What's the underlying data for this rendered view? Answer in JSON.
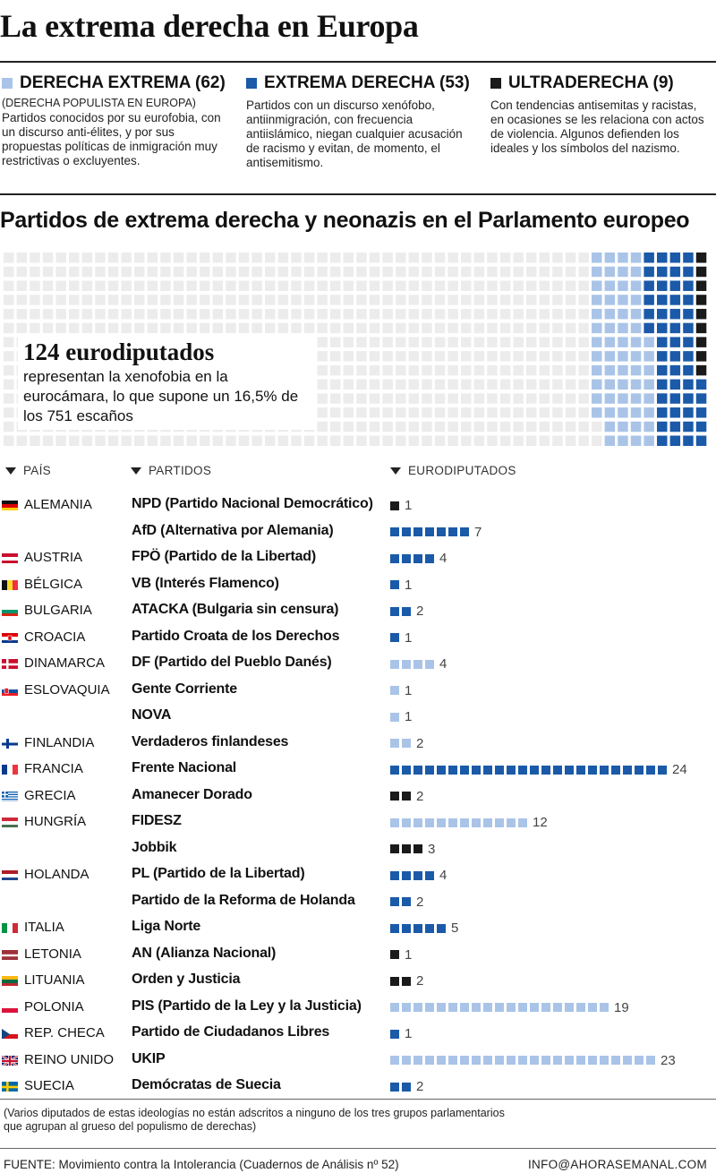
{
  "title": "La extrema derecha en Europa",
  "colors": {
    "derecha_extrema": "#aac4e8",
    "extrema_derecha": "#1a5aa8",
    "ultraderecha": "#1a1a1a",
    "empty": "#ececec"
  },
  "categories": [
    {
      "key": "derecha_extrema",
      "title": "DERECHA EXTREMA (62)",
      "subtitle": "(DERECHA POPULISTA EN EUROPA)",
      "description": "Partidos conocidos por su eurofobia, con un discurso anti-élites, y por sus propuestas políticas de inmigración muy restrictivas o excluyentes."
    },
    {
      "key": "extrema_derecha",
      "title": "EXTREMA DERECHA (53)",
      "subtitle": "",
      "description": "Partidos con un discurso xenófobo, antiinmigración, con frecuencia antiislámico, niegan cualquier acusación de racismo y evitan, de momento, el antisemitismo."
    },
    {
      "key": "ultraderecha",
      "title": "ULTRADERECHA (9)",
      "subtitle": "",
      "description": "Con tendencias antisemitas y racistas, en ocasiones se les relaciona con actos de violencia. Algunos defienden los ideales y los símbolos del nazismo."
    }
  ],
  "section_title": "Partidos de extrema derecha y neonazis en el Parlamento europeo",
  "callout": {
    "number": "124 eurodiputados",
    "text": "representan la xenofobia en la eurocámara, lo que supone un 16,5% de los  751 escaños"
  },
  "columns": {
    "country": "PAÍS",
    "party": "PARTIDOS",
    "mep": "EURODIPUTADOS"
  },
  "chart_data": [
    {
      "type": "waffle",
      "total_seats": 751,
      "series": [
        {
          "name": "DERECHA EXTREMA",
          "values": [
            62
          ]
        },
        {
          "name": "EXTREMA DERECHA",
          "values": [
            53
          ]
        },
        {
          "name": "ULTRADERECHA",
          "values": [
            9
          ]
        }
      ]
    },
    {
      "type": "bar",
      "categories": [
        "NPD (Partido Nacional Democrático)",
        "AfD (Alternativa por Alemania)",
        "FPÖ (Partido de la Libertad)",
        "VB (Interés Flamenco)",
        "ATACKA (Bulgaria sin censura)",
        "Partido Croata de los Derechos",
        "DF (Partido del Pueblo Danés)",
        "Gente Corriente",
        "NOVA",
        "Verdaderos finlandeses",
        "Frente Nacional",
        "Amanecer Dorado",
        "FIDESZ",
        "Jobbik",
        "PL (Partido de la Libertad)",
        "Partido de la Reforma de Holanda",
        "Liga Norte",
        "AN (Alianza Nacional)",
        "Orden y Justicia",
        "PIS (Partido de la Ley y la Justicia)",
        "Partido de Ciudadanos Libres",
        "UKIP",
        "Demócratas de Suecia"
      ],
      "values": [
        1,
        7,
        4,
        1,
        2,
        1,
        4,
        1,
        1,
        2,
        24,
        2,
        12,
        3,
        4,
        2,
        5,
        1,
        2,
        19,
        1,
        23,
        2
      ]
    }
  ],
  "rows": [
    {
      "country": "ALEMANIA",
      "flag": "germany",
      "party": "NPD (Partido Nacional Democrático)",
      "count": 1,
      "cat": "ultraderecha"
    },
    {
      "country": "",
      "flag": "",
      "party": "AfD (Alternativa por Alemania)",
      "count": 7,
      "cat": "extrema_derecha"
    },
    {
      "country": "AUSTRIA",
      "flag": "austria",
      "party": "FPÖ (Partido de la Libertad)",
      "count": 4,
      "cat": "extrema_derecha"
    },
    {
      "country": "BÉLGICA",
      "flag": "belgium",
      "party": "VB (Interés Flamenco)",
      "count": 1,
      "cat": "extrema_derecha"
    },
    {
      "country": "BULGARIA",
      "flag": "bulgaria",
      "party": "ATACKA (Bulgaria sin censura)",
      "count": 2,
      "cat": "extrema_derecha"
    },
    {
      "country": "CROACIA",
      "flag": "croatia",
      "party": "Partido Croata de los Derechos",
      "count": 1,
      "cat": "extrema_derecha"
    },
    {
      "country": "DINAMARCA",
      "flag": "denmark",
      "party": "DF (Partido del Pueblo Danés)",
      "count": 4,
      "cat": "derecha_extrema"
    },
    {
      "country": "ESLOVAQUIA",
      "flag": "slovakia",
      "party": "Gente Corriente",
      "count": 1,
      "cat": "derecha_extrema"
    },
    {
      "country": "",
      "flag": "",
      "party": "NOVA",
      "count": 1,
      "cat": "derecha_extrema"
    },
    {
      "country": "FINLANDIA",
      "flag": "finland",
      "party": "Verdaderos finlandeses",
      "count": 2,
      "cat": "derecha_extrema"
    },
    {
      "country": "FRANCIA",
      "flag": "france",
      "party": "Frente Nacional",
      "count": 24,
      "cat": "extrema_derecha"
    },
    {
      "country": "GRECIA",
      "flag": "greece",
      "party": "Amanecer Dorado",
      "count": 2,
      "cat": "ultraderecha"
    },
    {
      "country": "HUNGRÍA",
      "flag": "hungary",
      "party": "FIDESZ",
      "count": 12,
      "cat": "derecha_extrema"
    },
    {
      "country": "",
      "flag": "",
      "party": "Jobbik",
      "count": 3,
      "cat": "ultraderecha"
    },
    {
      "country": "HOLANDA",
      "flag": "netherlands",
      "party": "PL (Partido de la Libertad)",
      "count": 4,
      "cat": "extrema_derecha"
    },
    {
      "country": "",
      "flag": "",
      "party": "Partido de la Reforma de Holanda",
      "count": 2,
      "cat": "extrema_derecha"
    },
    {
      "country": "ITALIA",
      "flag": "italy",
      "party": "Liga Norte",
      "count": 5,
      "cat": "extrema_derecha"
    },
    {
      "country": "LETONIA",
      "flag": "latvia",
      "party": "AN (Alianza Nacional)",
      "count": 1,
      "cat": "ultraderecha"
    },
    {
      "country": "LITUANIA",
      "flag": "lithuania",
      "party": "Orden y Justicia",
      "count": 2,
      "cat": "ultraderecha"
    },
    {
      "country": "POLONIA",
      "flag": "poland",
      "party": "PIS (Partido de la Ley y la Justicia)",
      "count": 19,
      "cat": "derecha_extrema"
    },
    {
      "country": "REP. CHECA",
      "flag": "czech",
      "party": "Partido de Ciudadanos Libres",
      "count": 1,
      "cat": "extrema_derecha"
    },
    {
      "country": "REINO UNIDO",
      "flag": "uk",
      "party": "UKIP",
      "count": 23,
      "cat": "derecha_extrema"
    },
    {
      "country": "SUECIA",
      "flag": "sweden",
      "party": "Demócratas de Suecia",
      "count": 2,
      "cat": "extrema_derecha"
    }
  ],
  "footnote": "(Varios diputados de estas ideologías no están adscritos a ninguno de los tres grupos parlamentarios que agrupan al grueso del populismo de derechas)",
  "footer": {
    "source": "FUENTE: Movimiento contra la Intolerancia (Cuadernos de Análisis nº 52)",
    "contact": "INFO@AHORASEMANAL.COM"
  }
}
